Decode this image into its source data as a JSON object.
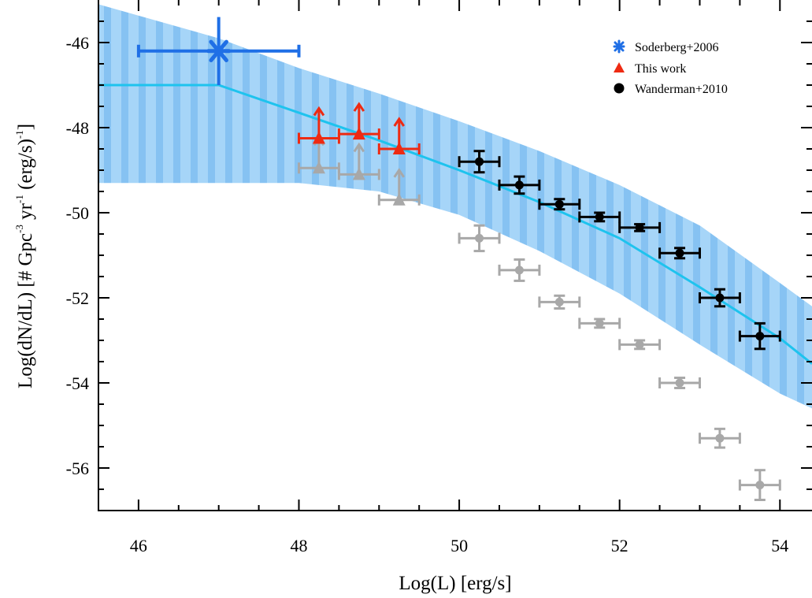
{
  "chart_data": {
    "type": "scatter",
    "xlabel": "Log(L) [erg/s]",
    "ylabel_parts": [
      "Log(dN/dL) [# Gpc",
      "-3",
      " yr",
      "-1",
      " (erg/s)",
      "-1",
      "]"
    ],
    "xlim": [
      45.5,
      54.4
    ],
    "ylim": [
      -57.0,
      -45.0
    ],
    "x_ticks": [
      "46",
      "48",
      "50",
      "52",
      "54"
    ],
    "y_ticks": [
      "-46",
      "-48",
      "-50",
      "-52",
      "-54",
      "-56"
    ],
    "x_tick_values": [
      46,
      48,
      50,
      52,
      54
    ],
    "y_tick_values": [
      -46,
      -48,
      -50,
      -52,
      -54,
      -56
    ],
    "legend": {
      "placement": "top-right",
      "entries": [
        "Soderberg+2006",
        "This work",
        "Wanderman+2010"
      ]
    },
    "colors": {
      "soderberg": "#1f6fe6",
      "this_work": "#ee2a12",
      "wanderman": "#000000",
      "gray_points": "#a8a8a8",
      "model_line": "#1ec3ee",
      "band": "#9dd0f7",
      "band_stripe": "#7bbaf0"
    },
    "model_line": {
      "x": [
        45.5,
        46.8,
        47.0,
        48.0,
        49.0,
        50.0,
        51.0,
        52.0,
        53.0,
        54.0,
        54.4
      ],
      "y": [
        -47.0,
        -47.0,
        -47.0,
        -47.65,
        -48.3,
        -49.0,
        -49.75,
        -50.6,
        -51.75,
        -52.95,
        -53.55
      ]
    },
    "uncertainty_band": {
      "x": [
        45.5,
        47.0,
        48.0,
        49.0,
        50.0,
        51.0,
        52.0,
        53.0,
        54.0,
        54.4
      ],
      "upper": [
        -45.1,
        -45.9,
        -46.6,
        -47.2,
        -47.85,
        -48.55,
        -49.35,
        -50.3,
        -51.65,
        -52.2
      ],
      "lower": [
        -49.3,
        -49.3,
        -49.3,
        -49.5,
        -50.05,
        -50.9,
        -51.9,
        -53.1,
        -54.25,
        -54.6
      ]
    },
    "series": [
      {
        "name": "Soderberg+2006",
        "marker": "asterisk",
        "points": [
          {
            "x": 47.0,
            "y": -46.2,
            "xerr": [
              1.0,
              1.0
            ],
            "yerr": [
              0.8,
              0.8
            ]
          }
        ]
      },
      {
        "name": "This work",
        "marker": "triangle",
        "lower_limit": true,
        "points": [
          {
            "x": 48.25,
            "y": -48.25,
            "xerr": [
              0.25,
              0.25
            ]
          },
          {
            "x": 48.75,
            "y": -48.15,
            "xerr": [
              0.25,
              0.25
            ]
          },
          {
            "x": 49.25,
            "y": -48.5,
            "xerr": [
              0.25,
              0.25
            ]
          }
        ]
      },
      {
        "name": "Wanderman+2010",
        "marker": "circle",
        "points": [
          {
            "x": 50.25,
            "y": -48.8,
            "xerr": [
              0.25,
              0.25
            ],
            "yerr": [
              0.25,
              0.25
            ]
          },
          {
            "x": 50.75,
            "y": -49.35,
            "xerr": [
              0.25,
              0.25
            ],
            "yerr": [
              0.2,
              0.2
            ]
          },
          {
            "x": 51.25,
            "y": -49.8,
            "xerr": [
              0.25,
              0.25
            ],
            "yerr": [
              0.12,
              0.12
            ]
          },
          {
            "x": 51.75,
            "y": -50.1,
            "xerr": [
              0.25,
              0.25
            ],
            "yerr": [
              0.1,
              0.1
            ]
          },
          {
            "x": 52.25,
            "y": -50.35,
            "xerr": [
              0.25,
              0.25
            ],
            "yerr": [
              0.08,
              0.08
            ]
          },
          {
            "x": 52.75,
            "y": -50.95,
            "xerr": [
              0.25,
              0.25
            ],
            "yerr": [
              0.12,
              0.12
            ]
          },
          {
            "x": 53.25,
            "y": -52.0,
            "xerr": [
              0.25,
              0.25
            ],
            "yerr": [
              0.2,
              0.2
            ]
          },
          {
            "x": 53.75,
            "y": -52.9,
            "xerr": [
              0.25,
              0.25
            ],
            "yerr": [
              0.3,
              0.3
            ]
          }
        ]
      },
      {
        "marker": "triangle",
        "lower_limit": true,
        "color_key": "gray_points",
        "points": [
          {
            "x": 48.25,
            "y": -48.95,
            "xerr": [
              0.25,
              0.25
            ]
          },
          {
            "x": 48.75,
            "y": -49.1,
            "xerr": [
              0.25,
              0.25
            ]
          },
          {
            "x": 49.25,
            "y": -49.7,
            "xerr": [
              0.25,
              0.25
            ]
          }
        ]
      },
      {
        "marker": "circle",
        "color_key": "gray_points",
        "points": [
          {
            "x": 50.25,
            "y": -50.6,
            "xerr": [
              0.25,
              0.25
            ],
            "yerr": [
              0.3,
              0.3
            ]
          },
          {
            "x": 50.75,
            "y": -51.35,
            "xerr": [
              0.25,
              0.25
            ],
            "yerr": [
              0.25,
              0.25
            ]
          },
          {
            "x": 51.25,
            "y": -52.1,
            "xerr": [
              0.25,
              0.25
            ],
            "yerr": [
              0.15,
              0.15
            ]
          },
          {
            "x": 51.75,
            "y": -52.6,
            "xerr": [
              0.25,
              0.25
            ],
            "yerr": [
              0.1,
              0.1
            ]
          },
          {
            "x": 52.25,
            "y": -53.1,
            "xerr": [
              0.25,
              0.25
            ],
            "yerr": [
              0.1,
              0.1
            ]
          },
          {
            "x": 52.75,
            "y": -54.0,
            "xerr": [
              0.25,
              0.25
            ],
            "yerr": [
              0.12,
              0.12
            ]
          },
          {
            "x": 53.25,
            "y": -55.3,
            "xerr": [
              0.25,
              0.25
            ],
            "yerr": [
              0.22,
              0.22
            ]
          },
          {
            "x": 53.75,
            "y": -56.4,
            "xerr": [
              0.25,
              0.25
            ],
            "yerr": [
              0.35,
              0.35
            ]
          }
        ]
      }
    ]
  }
}
